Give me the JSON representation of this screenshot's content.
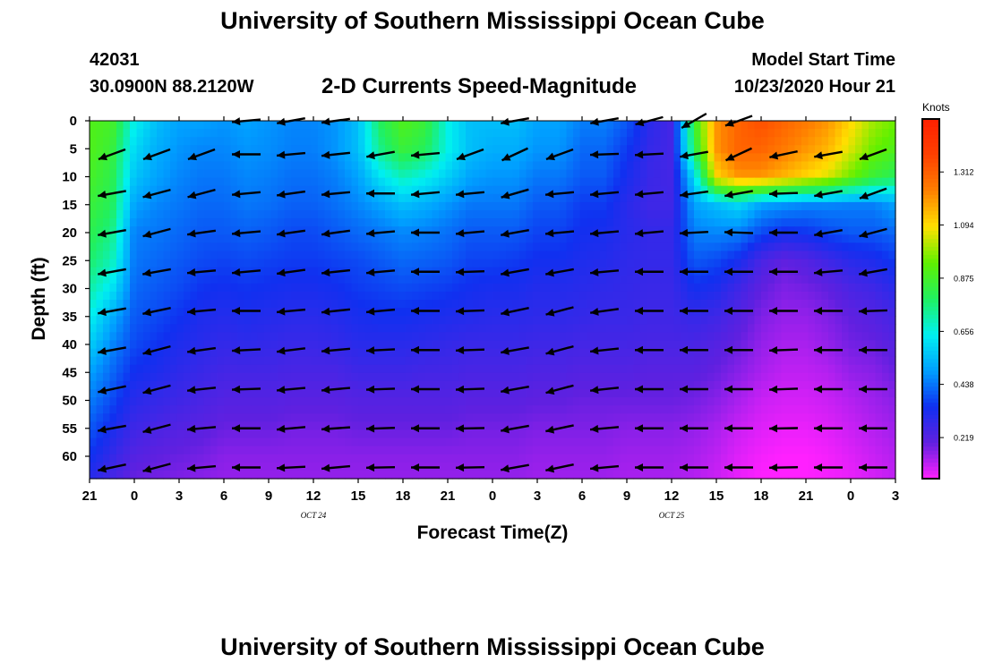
{
  "header": {
    "title": "University of Southern Mississippi Ocean Cube",
    "station_id": "42031",
    "station_coords": "30.0900N 88.2120W",
    "plot_title": "2-D Currents Speed-Magnitude",
    "model_start_label": "Model Start Time",
    "model_start_value": "10/23/2020 Hour 21"
  },
  "footer": {
    "title": "University of Southern Mississippi Ocean Cube"
  },
  "chart_data": {
    "type": "heatmap",
    "title": "2-D Currents Speed-Magnitude",
    "xlabel": "Forecast Time(Z)",
    "ylabel": "Depth (ft)",
    "x_ticks": [
      "21",
      "0",
      "3",
      "6",
      "9",
      "12",
      "15",
      "18",
      "21",
      "0",
      "3",
      "6",
      "9",
      "12",
      "15",
      "18",
      "21",
      "0",
      "3"
    ],
    "date_labels": [
      {
        "text": "OCT 24",
        "at_hour": 15
      },
      {
        "text": "OCT 25",
        "at_hour": 39
      }
    ],
    "x_range_hours": [
      0,
      54
    ],
    "y_ticks": [
      0,
      5,
      10,
      15,
      20,
      25,
      30,
      35,
      40,
      45,
      50,
      55,
      60
    ],
    "depth_range_ft": [
      0,
      64
    ],
    "colorbar": {
      "unit": "Knots",
      "ticks": [
        0.219,
        0.438,
        0.656,
        0.875,
        1.094,
        1.312
      ],
      "range": [
        0.05,
        1.53
      ],
      "colors": [
        "#ff20ff",
        "#6020e0",
        "#1030f0",
        "#00a0ff",
        "#00f0f0",
        "#20f060",
        "#60f000",
        "#ffe000",
        "#ff8000",
        "#ff4000",
        "#ff2000"
      ]
    },
    "speed_grid": {
      "time_hours": [
        0,
        1.5,
        3,
        4.5,
        6,
        7.5,
        9,
        10.5,
        12,
        13.5,
        15,
        16.5,
        18,
        19.5,
        21,
        22.5,
        24,
        25.5,
        27,
        28.5,
        30,
        31.5,
        33,
        34.5,
        36,
        37.5,
        39,
        40.5,
        42,
        43.5,
        45,
        46.5,
        48,
        49.5,
        51,
        52.5,
        54
      ],
      "depth_ft": [
        0,
        5,
        10,
        15,
        20,
        25,
        30,
        35,
        40,
        45,
        50,
        55,
        60,
        64
      ],
      "values_knots": [
        [
          0.9,
          0.88,
          0.65,
          0.55,
          0.5,
          0.5,
          0.48,
          0.5,
          0.48,
          0.46,
          0.46,
          0.48,
          0.55,
          0.8,
          0.9,
          0.85,
          0.65,
          0.55,
          0.55,
          0.55,
          0.5,
          0.5,
          0.45,
          0.45,
          0.4,
          0.3,
          0.25,
          0.85,
          1.2,
          1.3,
          1.35,
          1.3,
          1.25,
          1.2,
          1.1,
          1.0,
          0.95
        ],
        [
          0.9,
          0.85,
          0.6,
          0.52,
          0.48,
          0.46,
          0.46,
          0.48,
          0.47,
          0.45,
          0.45,
          0.48,
          0.55,
          0.75,
          0.85,
          0.8,
          0.65,
          0.55,
          0.52,
          0.52,
          0.48,
          0.48,
          0.42,
          0.42,
          0.36,
          0.28,
          0.25,
          0.8,
          1.2,
          1.3,
          1.3,
          1.25,
          1.2,
          1.15,
          1.05,
          0.95,
          0.9
        ],
        [
          0.88,
          0.82,
          0.56,
          0.5,
          0.46,
          0.44,
          0.44,
          0.46,
          0.45,
          0.43,
          0.43,
          0.45,
          0.5,
          0.62,
          0.7,
          0.65,
          0.58,
          0.5,
          0.48,
          0.48,
          0.44,
          0.44,
          0.4,
          0.4,
          0.33,
          0.27,
          0.25,
          0.6,
          1.1,
          1.2,
          1.2,
          1.15,
          1.1,
          1.05,
          0.95,
          0.85,
          0.8
        ],
        [
          0.85,
          0.8,
          0.5,
          0.46,
          0.44,
          0.42,
          0.42,
          0.44,
          0.43,
          0.41,
          0.41,
          0.43,
          0.46,
          0.5,
          0.55,
          0.52,
          0.48,
          0.44,
          0.44,
          0.44,
          0.4,
          0.4,
          0.36,
          0.36,
          0.3,
          0.26,
          0.26,
          0.5,
          0.55,
          0.6,
          0.5,
          0.48,
          0.46,
          0.46,
          0.45,
          0.45,
          0.5
        ],
        [
          0.82,
          0.75,
          0.45,
          0.44,
          0.42,
          0.4,
          0.4,
          0.41,
          0.4,
          0.38,
          0.38,
          0.4,
          0.42,
          0.44,
          0.46,
          0.45,
          0.43,
          0.4,
          0.4,
          0.4,
          0.37,
          0.37,
          0.34,
          0.33,
          0.3,
          0.28,
          0.28,
          0.45,
          0.46,
          0.45,
          0.38,
          0.34,
          0.35,
          0.38,
          0.4,
          0.4,
          0.42
        ],
        [
          0.78,
          0.7,
          0.44,
          0.42,
          0.4,
          0.38,
          0.37,
          0.38,
          0.37,
          0.36,
          0.36,
          0.37,
          0.38,
          0.4,
          0.42,
          0.41,
          0.4,
          0.37,
          0.37,
          0.36,
          0.34,
          0.34,
          0.32,
          0.31,
          0.29,
          0.28,
          0.28,
          0.4,
          0.38,
          0.33,
          0.24,
          0.2,
          0.22,
          0.26,
          0.3,
          0.32,
          0.36
        ],
        [
          0.72,
          0.62,
          0.42,
          0.4,
          0.38,
          0.35,
          0.34,
          0.35,
          0.34,
          0.33,
          0.33,
          0.34,
          0.36,
          0.37,
          0.38,
          0.37,
          0.36,
          0.34,
          0.33,
          0.33,
          0.31,
          0.31,
          0.3,
          0.29,
          0.28,
          0.27,
          0.27,
          0.34,
          0.32,
          0.26,
          0.2,
          0.17,
          0.18,
          0.2,
          0.24,
          0.26,
          0.3
        ],
        [
          0.65,
          0.52,
          0.4,
          0.38,
          0.35,
          0.32,
          0.31,
          0.32,
          0.31,
          0.3,
          0.3,
          0.31,
          0.33,
          0.34,
          0.34,
          0.33,
          0.32,
          0.31,
          0.3,
          0.3,
          0.29,
          0.29,
          0.28,
          0.27,
          0.27,
          0.26,
          0.26,
          0.28,
          0.26,
          0.22,
          0.17,
          0.15,
          0.15,
          0.17,
          0.2,
          0.22,
          0.25
        ],
        [
          0.58,
          0.46,
          0.38,
          0.35,
          0.32,
          0.3,
          0.28,
          0.29,
          0.28,
          0.27,
          0.27,
          0.28,
          0.3,
          0.3,
          0.3,
          0.29,
          0.28,
          0.27,
          0.27,
          0.27,
          0.26,
          0.26,
          0.25,
          0.25,
          0.25,
          0.24,
          0.24,
          0.24,
          0.22,
          0.19,
          0.15,
          0.13,
          0.13,
          0.15,
          0.18,
          0.19,
          0.22
        ],
        [
          0.5,
          0.42,
          0.34,
          0.32,
          0.29,
          0.27,
          0.25,
          0.25,
          0.25,
          0.24,
          0.24,
          0.24,
          0.26,
          0.26,
          0.26,
          0.25,
          0.25,
          0.24,
          0.24,
          0.24,
          0.23,
          0.23,
          0.22,
          0.22,
          0.22,
          0.21,
          0.21,
          0.21,
          0.19,
          0.16,
          0.13,
          0.11,
          0.11,
          0.12,
          0.15,
          0.16,
          0.19
        ],
        [
          0.45,
          0.38,
          0.3,
          0.28,
          0.26,
          0.24,
          0.22,
          0.22,
          0.22,
          0.21,
          0.21,
          0.21,
          0.22,
          0.22,
          0.22,
          0.22,
          0.22,
          0.21,
          0.21,
          0.21,
          0.2,
          0.2,
          0.19,
          0.19,
          0.19,
          0.19,
          0.19,
          0.18,
          0.16,
          0.13,
          0.1,
          0.09,
          0.09,
          0.1,
          0.12,
          0.14,
          0.16
        ],
        [
          0.4,
          0.33,
          0.26,
          0.24,
          0.22,
          0.21,
          0.19,
          0.19,
          0.19,
          0.18,
          0.18,
          0.18,
          0.19,
          0.19,
          0.19,
          0.19,
          0.19,
          0.18,
          0.18,
          0.18,
          0.17,
          0.17,
          0.17,
          0.17,
          0.16,
          0.16,
          0.16,
          0.15,
          0.13,
          0.1,
          0.08,
          0.07,
          0.07,
          0.08,
          0.1,
          0.12,
          0.14
        ],
        [
          0.35,
          0.28,
          0.22,
          0.2,
          0.19,
          0.18,
          0.16,
          0.16,
          0.16,
          0.16,
          0.16,
          0.16,
          0.16,
          0.16,
          0.16,
          0.16,
          0.16,
          0.16,
          0.16,
          0.16,
          0.15,
          0.15,
          0.15,
          0.15,
          0.14,
          0.14,
          0.14,
          0.13,
          0.11,
          0.08,
          0.06,
          0.05,
          0.05,
          0.06,
          0.08,
          0.1,
          0.12
        ],
        [
          0.3,
          0.25,
          0.19,
          0.18,
          0.17,
          0.16,
          0.15,
          0.15,
          0.15,
          0.15,
          0.15,
          0.15,
          0.15,
          0.15,
          0.15,
          0.15,
          0.15,
          0.15,
          0.15,
          0.15,
          0.14,
          0.14,
          0.14,
          0.14,
          0.13,
          0.13,
          0.13,
          0.12,
          0.1,
          0.07,
          0.05,
          0.05,
          0.05,
          0.06,
          0.07,
          0.09,
          0.11
        ]
      ]
    },
    "vectors": {
      "time_hours": [
        1.5,
        4.5,
        7.5,
        10.5,
        13.5,
        16.5,
        19.5,
        22.5,
        25.5,
        28.5,
        31.5,
        34.5,
        37.5,
        40.5,
        43.5,
        46.5,
        49.5,
        52.5
      ],
      "depth_ft": [
        0,
        6,
        13,
        20,
        27,
        34,
        41,
        48,
        55,
        62
      ],
      "direction_deg": [
        [
          null,
          null,
          null,
          185,
          190,
          188,
          null,
          null,
          null,
          190,
          null,
          190,
          195,
          210,
          200,
          null,
          null,
          null
        ],
        [
          200,
          200,
          200,
          180,
          185,
          186,
          190,
          185,
          200,
          205,
          200,
          182,
          183,
          190,
          205,
          192,
          190,
          200
        ],
        [
          190,
          195,
          195,
          185,
          188,
          185,
          180,
          185,
          185,
          196,
          185,
          185,
          185,
          188,
          190,
          182,
          190,
          200
        ],
        [
          190,
          195,
          188,
          185,
          188,
          188,
          185,
          180,
          185,
          190,
          185,
          185,
          185,
          183,
          178,
          180,
          190,
          195
        ],
        [
          190,
          190,
          185,
          185,
          188,
          186,
          185,
          180,
          182,
          190,
          190,
          185,
          180,
          180,
          180,
          180,
          185,
          190
        ],
        [
          190,
          192,
          185,
          180,
          185,
          186,
          185,
          180,
          182,
          192,
          195,
          188,
          180,
          180,
          180,
          180,
          180,
          182
        ],
        [
          190,
          195,
          188,
          183,
          187,
          185,
          183,
          180,
          182,
          190,
          195,
          186,
          180,
          180,
          180,
          182,
          180,
          180
        ],
        [
          192,
          195,
          186,
          182,
          185,
          185,
          182,
          180,
          182,
          190,
          195,
          186,
          180,
          180,
          180,
          182,
          180,
          180
        ],
        [
          190,
          195,
          185,
          180,
          185,
          184,
          182,
          180,
          181,
          190,
          192,
          185,
          180,
          180,
          180,
          181,
          180,
          180
        ],
        [
          192,
          195,
          185,
          180,
          183,
          185,
          181,
          180,
          181,
          190,
          192,
          185,
          180,
          180,
          180,
          181,
          180,
          180
        ]
      ]
    }
  }
}
